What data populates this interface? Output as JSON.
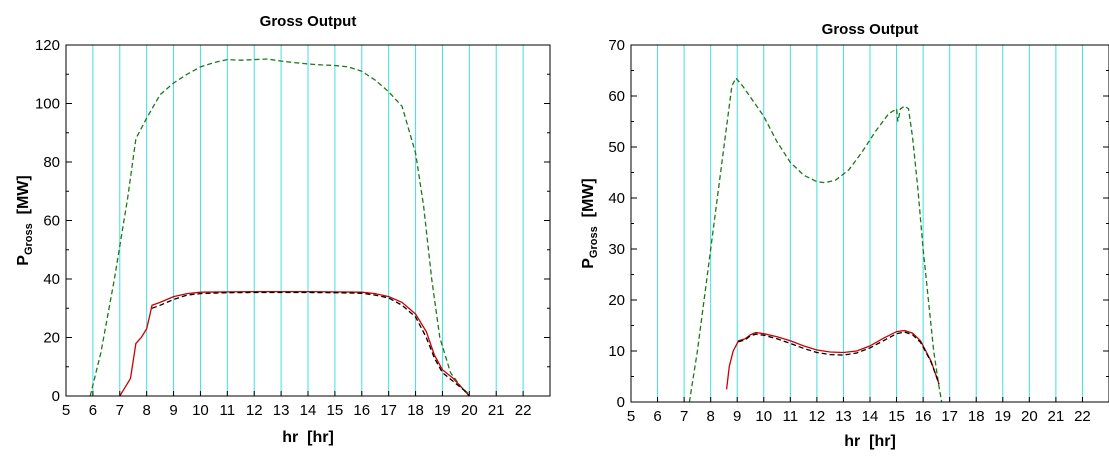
{
  "chart_data": [
    {
      "type": "line",
      "title": "Gross Output",
      "xlabel": "hr  [hr]",
      "ylabel_main": "P",
      "ylabel_sub": "Gross",
      "ylabel_unit": "  [MW]",
      "xlim": [
        5,
        23
      ],
      "ylim": [
        0,
        120
      ],
      "xticks": [
        5,
        6,
        7,
        8,
        9,
        10,
        11,
        12,
        13,
        14,
        15,
        16,
        17,
        18,
        19,
        20,
        21,
        22
      ],
      "yticks": [
        0,
        20,
        40,
        60,
        80,
        100,
        120
      ],
      "grid": "vertical",
      "grid_color": "#40e0e0",
      "series": [
        {
          "color": "#1a7a1a",
          "style": "dashed",
          "points": [
            [
              5.9,
              0
            ],
            [
              6.3,
              15
            ],
            [
              6.8,
              40
            ],
            [
              7.3,
              68
            ],
            [
              7.6,
              88
            ],
            [
              8.0,
              95
            ],
            [
              8.5,
              103
            ],
            [
              9.0,
              107
            ],
            [
              9.5,
              110
            ],
            [
              10.0,
              112.5
            ],
            [
              10.5,
              114
            ],
            [
              11.0,
              115
            ],
            [
              11.5,
              114.8
            ],
            [
              12.0,
              115
            ],
            [
              12.5,
              115.2
            ],
            [
              13.0,
              114.5
            ],
            [
              13.5,
              114
            ],
            [
              14.0,
              113.5
            ],
            [
              14.5,
              113.2
            ],
            [
              15.0,
              113
            ],
            [
              15.5,
              112.5
            ],
            [
              16.0,
              111
            ],
            [
              16.5,
              108
            ],
            [
              17.0,
              104
            ],
            [
              17.5,
              99
            ],
            [
              18.0,
              83
            ],
            [
              18.3,
              65
            ],
            [
              18.6,
              40
            ],
            [
              18.9,
              20
            ],
            [
              19.3,
              8
            ],
            [
              19.7,
              3
            ],
            [
              20.0,
              0.5
            ]
          ]
        },
        {
          "color": "#cc0000",
          "style": "solid",
          "points": [
            [
              7.0,
              0
            ],
            [
              7.2,
              3
            ],
            [
              7.4,
              6
            ],
            [
              7.6,
              18
            ],
            [
              7.8,
              20
            ],
            [
              8.0,
              23
            ],
            [
              8.1,
              27
            ],
            [
              8.2,
              31
            ],
            [
              8.5,
              32
            ],
            [
              9.0,
              34
            ],
            [
              9.5,
              35
            ],
            [
              10.0,
              35.5
            ],
            [
              11.0,
              35.6
            ],
            [
              12.0,
              35.7
            ],
            [
              13.0,
              35.7
            ],
            [
              14.0,
              35.7
            ],
            [
              15.0,
              35.6
            ],
            [
              16.0,
              35.5
            ],
            [
              16.5,
              35
            ],
            [
              17.0,
              34
            ],
            [
              17.5,
              32
            ],
            [
              18.0,
              28
            ],
            [
              18.4,
              22
            ],
            [
              18.7,
              14
            ],
            [
              19.0,
              9
            ],
            [
              19.4,
              6
            ],
            [
              19.8,
              2
            ],
            [
              20.0,
              0
            ]
          ]
        },
        {
          "color": "#000000",
          "style": "dashed",
          "points": [
            [
              8.2,
              30
            ],
            [
              8.5,
              31
            ],
            [
              9.0,
              33
            ],
            [
              9.5,
              34.5
            ],
            [
              10.0,
              35
            ],
            [
              11.0,
              35.3
            ],
            [
              12.0,
              35.4
            ],
            [
              13.0,
              35.4
            ],
            [
              14.0,
              35.4
            ],
            [
              15.0,
              35.3
            ],
            [
              16.0,
              35.1
            ],
            [
              16.5,
              34.5
            ],
            [
              17.0,
              33.5
            ],
            [
              17.5,
              31
            ],
            [
              18.0,
              27
            ],
            [
              18.4,
              20
            ],
            [
              18.7,
              13
            ],
            [
              19.0,
              8
            ],
            [
              19.4,
              5
            ],
            [
              19.8,
              2
            ],
            [
              20.0,
              0
            ]
          ]
        }
      ]
    },
    {
      "type": "line",
      "title": "Gross Output",
      "xlabel": "hr  [hr]",
      "ylabel_main": "P",
      "ylabel_sub": "Gross",
      "ylabel_unit": "  [MW]",
      "xlim": [
        5,
        23
      ],
      "ylim": [
        0,
        70
      ],
      "xticks": [
        5,
        6,
        7,
        8,
        9,
        10,
        11,
        12,
        13,
        14,
        15,
        16,
        17,
        18,
        19,
        20,
        21,
        22
      ],
      "yticks": [
        0,
        10,
        20,
        30,
        40,
        50,
        60,
        70
      ],
      "grid": "vertical",
      "grid_color": "#40e0e0",
      "series": [
        {
          "color": "#1a7a1a",
          "style": "dashed",
          "points": [
            [
              7.2,
              0
            ],
            [
              7.5,
              10
            ],
            [
              7.8,
              22
            ],
            [
              8.2,
              38
            ],
            [
              8.5,
              50
            ],
            [
              8.8,
              62
            ],
            [
              8.95,
              63.5
            ],
            [
              9.2,
              62
            ],
            [
              9.6,
              59
            ],
            [
              10.0,
              56
            ],
            [
              10.5,
              51
            ],
            [
              11.0,
              47
            ],
            [
              11.5,
              44.5
            ],
            [
              12.0,
              43.2
            ],
            [
              12.3,
              43
            ],
            [
              12.7,
              43.5
            ],
            [
              13.2,
              45.5
            ],
            [
              13.7,
              49
            ],
            [
              14.2,
              53
            ],
            [
              14.7,
              56.5
            ],
            [
              15.0,
              57.5
            ],
            [
              15.05,
              55
            ],
            [
              15.15,
              57.5
            ],
            [
              15.3,
              58
            ],
            [
              15.45,
              57.5
            ],
            [
              15.6,
              52
            ],
            [
              15.8,
              42
            ],
            [
              16.0,
              30
            ],
            [
              16.2,
              20
            ],
            [
              16.4,
              10
            ],
            [
              16.6,
              3
            ],
            [
              16.7,
              0
            ]
          ]
        },
        {
          "color": "#cc0000",
          "style": "solid",
          "points": [
            [
              8.6,
              2.5
            ],
            [
              8.7,
              7
            ],
            [
              8.85,
              10
            ],
            [
              9.05,
              12
            ],
            [
              9.3,
              12.4
            ],
            [
              9.5,
              13.2
            ],
            [
              9.7,
              13.6
            ],
            [
              10.0,
              13.4
            ],
            [
              10.5,
              12.8
            ],
            [
              11.0,
              12
            ],
            [
              11.5,
              11
            ],
            [
              12.0,
              10.2
            ],
            [
              12.5,
              9.8
            ],
            [
              13.0,
              9.7
            ],
            [
              13.5,
              10
            ],
            [
              14.0,
              11
            ],
            [
              14.5,
              12.5
            ],
            [
              15.0,
              13.8
            ],
            [
              15.3,
              14
            ],
            [
              15.6,
              13.5
            ],
            [
              15.9,
              12
            ],
            [
              16.1,
              10
            ],
            [
              16.3,
              8
            ],
            [
              16.5,
              5
            ],
            [
              16.6,
              3.5
            ]
          ]
        },
        {
          "color": "#000000",
          "style": "dashed",
          "points": [
            [
              9.05,
              11.8
            ],
            [
              9.3,
              12.2
            ],
            [
              9.5,
              13
            ],
            [
              9.7,
              13.3
            ],
            [
              10.0,
              13.1
            ],
            [
              10.5,
              12.4
            ],
            [
              11.0,
              11.5
            ],
            [
              11.5,
              10.5
            ],
            [
              12.0,
              9.7
            ],
            [
              12.5,
              9.3
            ],
            [
              13.0,
              9.2
            ],
            [
              13.5,
              9.6
            ],
            [
              14.0,
              10.6
            ],
            [
              14.5,
              12
            ],
            [
              15.0,
              13.4
            ],
            [
              15.3,
              13.7
            ],
            [
              15.6,
              13.2
            ],
            [
              15.9,
              11.7
            ],
            [
              16.1,
              9.8
            ],
            [
              16.3,
              7.8
            ],
            [
              16.5,
              5
            ],
            [
              16.6,
              3.5
            ]
          ]
        }
      ]
    }
  ]
}
